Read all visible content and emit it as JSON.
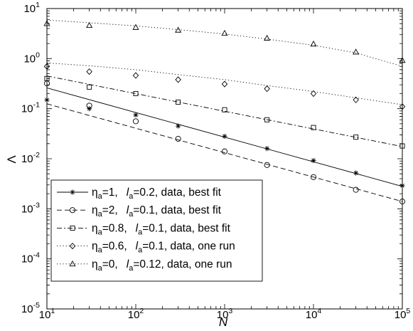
{
  "chart_data": {
    "type": "line",
    "title": "",
    "xlabel": "N",
    "ylabel": "Λ",
    "x_scale": "log",
    "y_scale": "log",
    "xlim": [
      10,
      100000
    ],
    "ylim": [
      1e-05,
      10
    ],
    "grid": false,
    "legend_position": "bottom-left",
    "x_ticks": [
      {
        "value": 10,
        "base": "10",
        "exp": "1"
      },
      {
        "value": 100,
        "base": "10",
        "exp": "2"
      },
      {
        "value": 1000,
        "base": "10",
        "exp": "3"
      },
      {
        "value": 10000,
        "base": "10",
        "exp": "4"
      },
      {
        "value": 100000,
        "base": "10",
        "exp": "5"
      }
    ],
    "y_ticks": [
      {
        "value": 10,
        "base": "10",
        "exp": "1"
      },
      {
        "value": 1,
        "base": "10",
        "exp": "0"
      },
      {
        "value": 0.1,
        "base": "10",
        "exp": "-1"
      },
      {
        "value": 0.01,
        "base": "10",
        "exp": "-2"
      },
      {
        "value": 0.001,
        "base": "10",
        "exp": "-3"
      },
      {
        "value": 0.0001,
        "base": "10",
        "exp": "-4"
      },
      {
        "value": 1e-05,
        "base": "10",
        "exp": "-5"
      }
    ],
    "series": [
      {
        "name": "ηa=1, la=0.2, data, best fit",
        "legend": {
          "eta_sub": "a",
          "eta_val": "=1,",
          "l_letter": "l",
          "l_sub": "a",
          "l_val": "=0.2, data, best fit"
        },
        "marker": "star",
        "line_style": "solid",
        "x": [
          10,
          30,
          100,
          300,
          1000,
          3000,
          10000,
          30000,
          100000
        ],
        "y": [
          0.15,
          0.1,
          0.075,
          0.045,
          0.028,
          0.016,
          0.0092,
          0.0052,
          0.0029
        ],
        "fit": {
          "x": [
            10,
            100000
          ],
          "y": [
            0.26,
            0.0028
          ]
        }
      },
      {
        "name": "ηa=2, la=0.1, data, best fit",
        "legend": {
          "eta_sub": "a",
          "eta_val": "=2,",
          "l_letter": "l",
          "l_sub": "a",
          "l_val": "=0.1, data, best fit"
        },
        "marker": "circle",
        "line_style": "dashed",
        "x": [
          10,
          30,
          100,
          300,
          1000,
          3000,
          10000,
          30000,
          100000
        ],
        "y": [
          0.32,
          0.115,
          0.056,
          0.025,
          0.014,
          0.0075,
          0.0043,
          0.0024,
          0.0014
        ],
        "fit": {
          "x": [
            10,
            100000
          ],
          "y": [
            0.125,
            0.0014
          ]
        }
      },
      {
        "name": "ηa=0.8, la=0.1, data, best fit",
        "legend": {
          "eta_sub": "a",
          "eta_val": "=0.8,",
          "l_letter": "l",
          "l_sub": "a",
          "l_val": "=0.1, data, best fit"
        },
        "marker": "square",
        "line_style": "dashdot",
        "x": [
          10,
          30,
          100,
          300,
          1000,
          3000,
          10000,
          30000,
          100000
        ],
        "y": [
          0.4,
          0.27,
          0.2,
          0.135,
          0.095,
          0.06,
          0.042,
          0.027,
          0.018
        ],
        "fit": {
          "x": [
            10,
            100000
          ],
          "y": [
            0.45,
            0.0175
          ]
        }
      },
      {
        "name": "ηa=0.6, la=0.1, data, one run",
        "legend": {
          "eta_sub": "a",
          "eta_val": "=0.6,",
          "l_letter": "l",
          "l_sub": "a",
          "l_val": "=0.1, data, one run"
        },
        "marker": "diamond",
        "line_style": "dotted",
        "x": [
          10,
          30,
          100,
          300,
          1000,
          3000,
          10000,
          30000,
          100000
        ],
        "y": [
          0.7,
          0.55,
          0.46,
          0.38,
          0.31,
          0.25,
          0.2,
          0.15,
          0.11
        ],
        "curve": {
          "x": [
            10,
            30,
            100,
            300,
            1000,
            3000,
            10000,
            30000,
            100000
          ],
          "y": [
            0.82,
            0.72,
            0.6,
            0.48,
            0.38,
            0.29,
            0.22,
            0.165,
            0.12
          ]
        }
      },
      {
        "name": "ηa=0, la=0.12, data, one run",
        "legend": {
          "eta_sub": "a",
          "eta_val": "=0,",
          "l_letter": "l",
          "l_sub": "a",
          "l_val": "=0.12, data, one run"
        },
        "marker": "triangle",
        "line_style": "dotted",
        "x": [
          10,
          30,
          100,
          300,
          1000,
          3000,
          10000,
          30000,
          100000
        ],
        "y": [
          5.0,
          4.6,
          4.2,
          3.7,
          3.2,
          2.55,
          1.95,
          1.35,
          0.92
        ],
        "curve": {
          "x": [
            10,
            30,
            100,
            300,
            1000,
            3000,
            10000,
            30000,
            100000
          ],
          "y": [
            5.9,
            5.2,
            4.5,
            3.8,
            3.1,
            2.45,
            1.85,
            1.3,
            0.7
          ]
        }
      }
    ]
  }
}
